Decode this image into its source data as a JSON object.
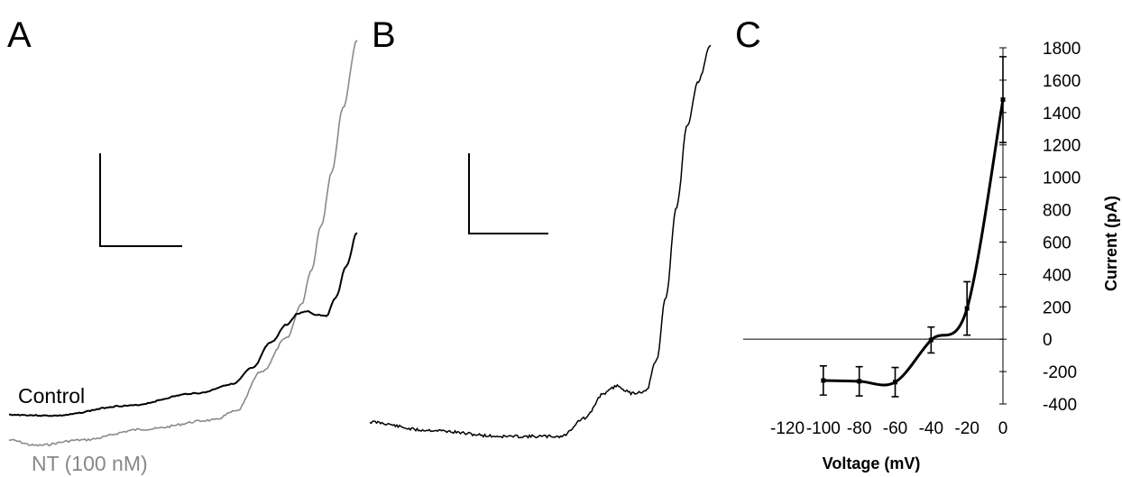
{
  "panels": {
    "a": "A",
    "b": "B",
    "c": "C"
  },
  "trace_labels": {
    "control": "Control",
    "nt": "NT (100 nM)"
  },
  "colors": {
    "control_trace": "#000000",
    "nt_trace": "#8a8a8a",
    "nt_label": "#888888",
    "iv_line": "#000000",
    "axes": "#000000"
  },
  "chart_data": [
    {
      "panel": "A",
      "type": "line",
      "title": "",
      "xlabel": "",
      "ylabel": "",
      "axes_visible": false,
      "series": [
        {
          "name": "Control",
          "color": "#000000"
        },
        {
          "name": "NT (100 nM)",
          "color": "#8a8a8a"
        }
      ]
    },
    {
      "panel": "B",
      "type": "line",
      "title": "",
      "xlabel": "",
      "ylabel": "",
      "axes_visible": false,
      "series": [
        {
          "name": "",
          "color": "#000000"
        }
      ]
    },
    {
      "panel": "C",
      "type": "line",
      "title": "",
      "xlabel": "Voltage (mV)",
      "ylabel": "Current (pA)",
      "xlim": [
        -120,
        0
      ],
      "ylim": [
        -400,
        1800
      ],
      "xticks": [
        -120,
        -100,
        -80,
        -60,
        -40,
        -20,
        0
      ],
      "yticks": [
        -400,
        -200,
        0,
        200,
        400,
        600,
        800,
        1000,
        1200,
        1400,
        1600,
        1800
      ],
      "grid": false,
      "series": [
        {
          "name": "",
          "x": [
            -100,
            -80,
            -60,
            -40,
            -20,
            0
          ],
          "y": [
            -255,
            -260,
            -265,
            -5,
            190,
            1480
          ],
          "error": [
            90,
            90,
            90,
            80,
            165,
            265
          ]
        }
      ]
    }
  ]
}
